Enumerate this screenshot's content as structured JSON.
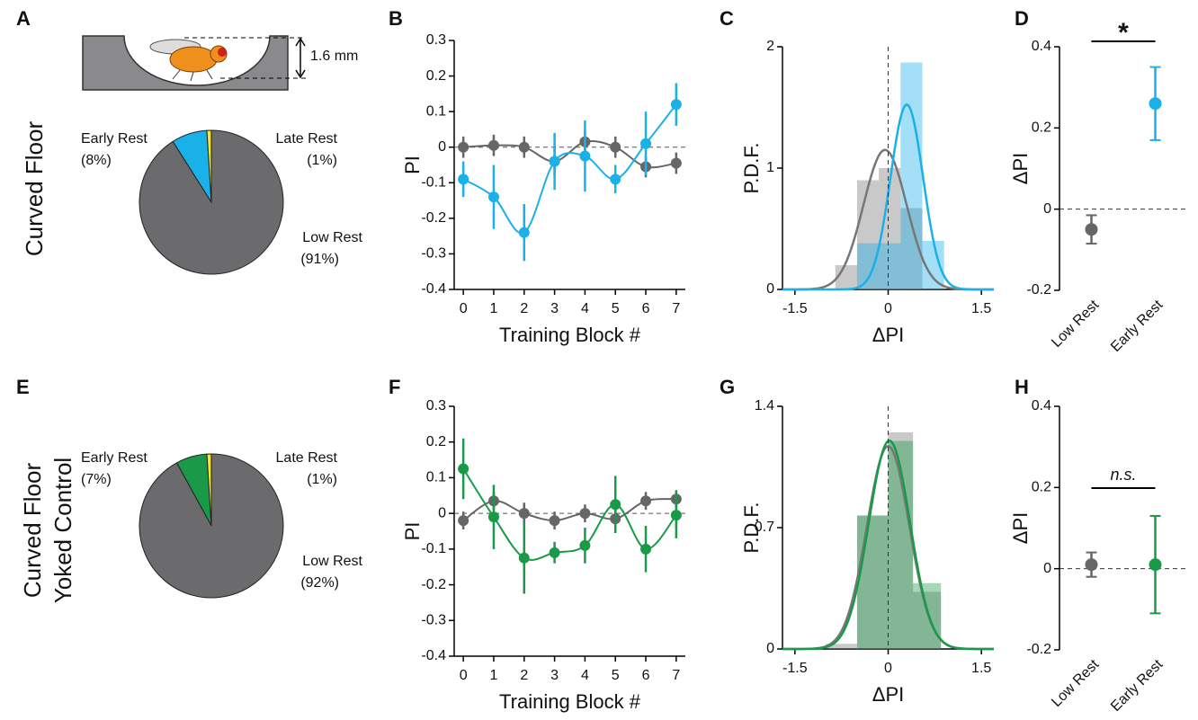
{
  "chart_data": [
    {
      "type": "pie",
      "panel": "A",
      "row_label": [
        "Curved Floor"
      ],
      "annotations": [
        "1.6 mm"
      ],
      "categories": [
        "Early Rest",
        "Late Rest",
        "Low Rest"
      ],
      "values": [
        8,
        1,
        91
      ],
      "value_labels": [
        "(8%)",
        "(1%)",
        "(91%)"
      ],
      "colors": [
        "#1ab0e8",
        "#f0e82a",
        "#6b6b6d"
      ]
    },
    {
      "type": "line",
      "panel": "B",
      "xlabel": "Training Block #",
      "ylabel": "PI",
      "x": [
        0,
        1,
        2,
        3,
        4,
        5,
        6,
        7
      ],
      "xlim": [
        -0.3,
        7.3
      ],
      "xticks": [
        0,
        1,
        2,
        3,
        4,
        5,
        6,
        7
      ],
      "ylim": [
        -0.4,
        0.3
      ],
      "yticks": [
        -0.4,
        -0.3,
        -0.2,
        -0.1,
        0,
        0.1,
        0.2,
        0.3
      ],
      "reference_line": 0,
      "series": [
        {
          "color": "#666666",
          "values": [
            0,
            0.005,
            0,
            -0.04,
            0.015,
            0,
            -0.055,
            -0.045
          ],
          "errors": [
            0.03,
            0.03,
            0.03,
            0.04,
            0.03,
            0.03,
            0.03,
            0.03
          ]
        },
        {
          "color": "#1ab0e8",
          "values": [
            -0.09,
            -0.14,
            -0.24,
            -0.04,
            -0.025,
            -0.09,
            0.01,
            0.12
          ],
          "errors": [
            0.05,
            0.09,
            0.08,
            0.08,
            0.1,
            0.04,
            0.09,
            0.06
          ]
        }
      ]
    },
    {
      "type": "histogram",
      "panel": "C",
      "xlabel": "ΔPI",
      "ylabel": "P.D.F.",
      "xlim": [
        -1.7,
        1.7
      ],
      "xticks": [
        -1.5,
        0,
        1.5
      ],
      "ylim": [
        0,
        2
      ],
      "yticks": [
        0,
        1,
        2
      ],
      "reference_line": 0,
      "series": [
        {
          "color": "#777777",
          "bins": [
            -0.85,
            -0.5,
            -0.15,
            0.2,
            0.55,
            0.9
          ],
          "values": [
            0.2,
            0.9,
            1.0,
            0.67,
            0
          ],
          "fit_mean": -0.05,
          "fit_sd": 0.347
        },
        {
          "color": "#1ab0e8",
          "bins": [
            -0.85,
            -0.5,
            -0.15,
            0.2,
            0.55,
            0.9
          ],
          "values": [
            0,
            0.38,
            0.38,
            1.87,
            0.4
          ],
          "fit_mean": 0.3,
          "fit_sd": 0.262
        }
      ]
    },
    {
      "type": "dot",
      "panel": "D",
      "ylabel": "ΔPI",
      "annotation": "*",
      "categories": [
        "Low Rest",
        "Early Rest"
      ],
      "values": [
        -0.05,
        0.26
      ],
      "errors": [
        0.035,
        0.09
      ],
      "colors": [
        "#666666",
        "#1ab0e8"
      ],
      "ylim": [
        -0.2,
        0.4
      ],
      "yticks": [
        -0.2,
        0,
        0.2,
        0.4
      ],
      "reference_line": 0
    },
    {
      "type": "pie",
      "panel": "E",
      "row_label": [
        "Curved Floor",
        "Yoked Control"
      ],
      "categories": [
        "Early Rest",
        "Late Rest",
        "Low Rest"
      ],
      "values": [
        7,
        1,
        92
      ],
      "value_labels": [
        "(7%)",
        "(1%)",
        "(92%)"
      ],
      "colors": [
        "#1a9a48",
        "#f0e82a",
        "#6b6b6d"
      ]
    },
    {
      "type": "line",
      "panel": "F",
      "xlabel": "Training Block #",
      "ylabel": "PI",
      "x": [
        0,
        1,
        2,
        3,
        4,
        5,
        6,
        7
      ],
      "xlim": [
        -0.3,
        7.3
      ],
      "xticks": [
        0,
        1,
        2,
        3,
        4,
        5,
        6,
        7
      ],
      "ylim": [
        -0.4,
        0.3
      ],
      "yticks": [
        -0.4,
        -0.3,
        -0.2,
        -0.1,
        0,
        0.1,
        0.2,
        0.3
      ],
      "reference_line": 0,
      "series": [
        {
          "color": "#666666",
          "values": [
            -0.02,
            0.035,
            0,
            -0.02,
            0,
            -0.015,
            0.035,
            0.04
          ],
          "errors": [
            0.025,
            0.025,
            0.03,
            0.025,
            0.025,
            0.03,
            0.025,
            0.025
          ]
        },
        {
          "color": "#1a9a48",
          "values": [
            0.125,
            -0.01,
            -0.125,
            -0.11,
            -0.09,
            0.025,
            -0.1,
            -0.005
          ],
          "errors": [
            0.085,
            0.09,
            0.1,
            0.03,
            0.05,
            0.08,
            0.065,
            0.065
          ]
        }
      ]
    },
    {
      "type": "histogram",
      "panel": "G",
      "xlabel": "ΔPI",
      "ylabel": "P.D.F.",
      "xlim": [
        -1.7,
        1.7
      ],
      "xticks": [
        -1.5,
        0,
        1.5
      ],
      "ylim": [
        0,
        1.4
      ],
      "yticks": [
        0,
        0.7,
        1.4
      ],
      "reference_line": 0,
      "series": [
        {
          "color": "#777777",
          "bins": [
            -1.0,
            -0.5,
            0,
            0.4,
            0.85
          ],
          "values": [
            0.03,
            0.77,
            1.25,
            0.33
          ],
          "fit_mean": 0,
          "fit_sd": 0.341
        },
        {
          "color": "#1a9a48",
          "bins": [
            -1.0,
            -0.5,
            0,
            0.4,
            0.85
          ],
          "values": [
            0,
            0.77,
            1.2,
            0.38
          ],
          "fit_mean": 0.02,
          "fit_sd": 0.332
        }
      ]
    },
    {
      "type": "dot",
      "panel": "H",
      "ylabel": "ΔPI",
      "annotation": "n.s.",
      "categories": [
        "Low Rest",
        "Early Rest"
      ],
      "values": [
        0.01,
        0.01
      ],
      "errors": [
        0.03,
        0.12
      ],
      "colors": [
        "#666666",
        "#1a9a48"
      ],
      "ylim": [
        -0.2,
        0.4
      ],
      "yticks": [
        -0.2,
        0,
        0.2,
        0.4
      ],
      "reference_line": 0
    }
  ]
}
